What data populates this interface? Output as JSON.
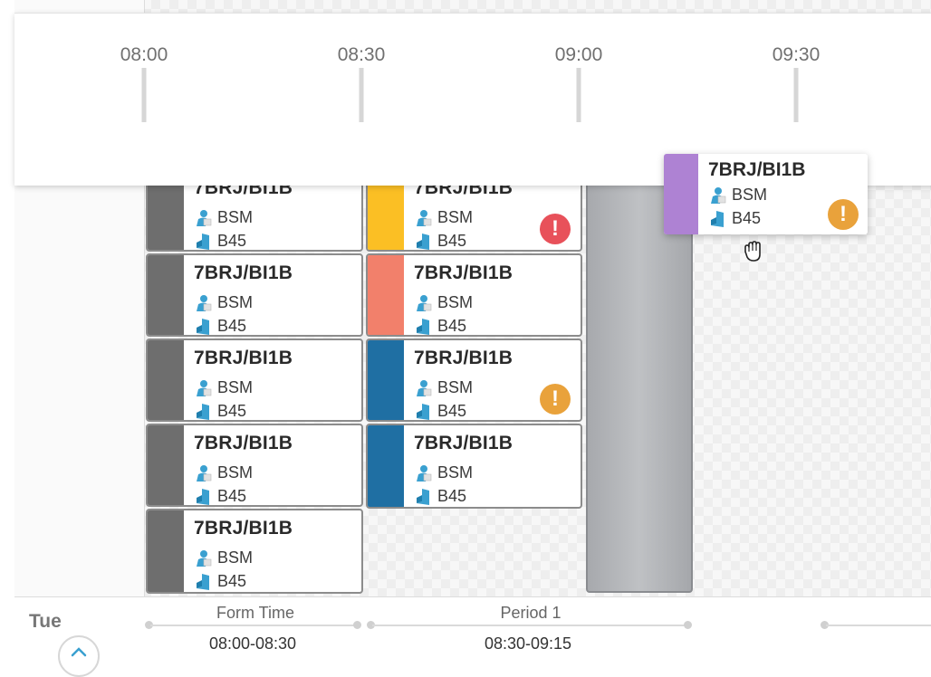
{
  "timeline": {
    "ticks": [
      "08:00",
      "08:30",
      "09:00",
      "09:30"
    ]
  },
  "lesson_common": {
    "code": "7BRJ/BI1B",
    "teacher": "BSM",
    "room": "B45"
  },
  "lessons": [
    {
      "code": "7BRJ/BI1B",
      "teacher": "BSM",
      "room": "B45",
      "color": "#6e6e6e",
      "badge": null
    },
    {
      "code": "7BRJ/BI1B",
      "teacher": "BSM",
      "room": "B45",
      "color": "#6e6e6e",
      "badge": null
    },
    {
      "code": "7BRJ/BI1B",
      "teacher": "BSM",
      "room": "B45",
      "color": "#6e6e6e",
      "badge": null
    },
    {
      "code": "7BRJ/BI1B",
      "teacher": "BSM",
      "room": "B45",
      "color": "#6e6e6e",
      "badge": null
    },
    {
      "code": "7BRJ/BI1B",
      "teacher": "BSM",
      "room": "B45",
      "color": "#6e6e6e",
      "badge": null
    },
    {
      "code": "7BRJ/BI1B",
      "teacher": "BSM",
      "room": "B45",
      "color": "#fbbf24",
      "badge": "error"
    },
    {
      "code": "7BRJ/BI1B",
      "teacher": "BSM",
      "room": "B45",
      "color": "#f2806b",
      "badge": null
    },
    {
      "code": "7BRJ/BI1B",
      "teacher": "BSM",
      "room": "B45",
      "color": "#1f6fa3",
      "badge": "warning"
    },
    {
      "code": "7BRJ/BI1B",
      "teacher": "BSM",
      "room": "B45",
      "color": "#1f6fa3",
      "badge": null
    }
  ],
  "dragging_lesson": {
    "code": "7BRJ/BI1B",
    "teacher": "BSM",
    "room": "B45",
    "color": "#ae82d3",
    "badge": "warning"
  },
  "badge_symbol": "!",
  "colors": {
    "error": "#e8515a",
    "warning": "#e9a23b",
    "icon": "#3aa0d0"
  },
  "day": {
    "label": "Tue"
  },
  "periods": [
    {
      "name": "Form Time",
      "time": "08:00-08:30"
    },
    {
      "name": "Period 1",
      "time": "08:30-09:15"
    }
  ]
}
